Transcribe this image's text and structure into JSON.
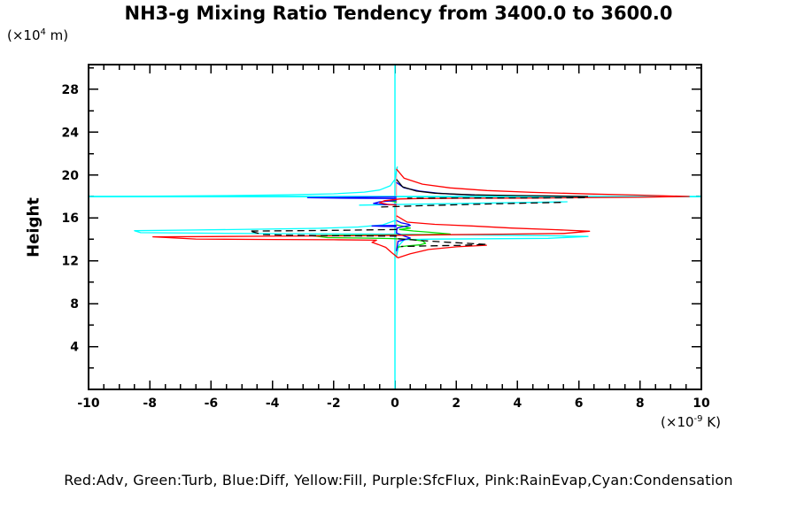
{
  "title": "NH3-g Mixing Ratio Tendency from 3400.0 to 3600.0",
  "legend": "Red:Adv, Green:Turb, Blue:Diff, Yellow:Fill, Purple:SfcFlux, Pink:RainEvap,Cyan:Condensation",
  "y_axis": {
    "label": "Height",
    "unit_prefix": "(×10",
    "unit_exp": "4",
    "unit_suffix": " m)",
    "major_ticks": [
      4,
      8,
      12,
      16,
      20,
      24,
      28
    ],
    "major_step": 4,
    "minor_step": 2,
    "range": [
      0,
      30.3
    ]
  },
  "x_axis": {
    "unit_prefix": "(×10",
    "unit_exp": "-9",
    "unit_suffix": " K)",
    "major_ticks": [
      -10,
      -8,
      -6,
      -4,
      -2,
      0,
      2,
      4,
      6,
      8,
      10
    ],
    "major_step": 2,
    "minor_step": 0.5,
    "range": [
      -10,
      10
    ]
  },
  "colors": {
    "red": "#ff0000",
    "green": "#00dd00",
    "blue": "#0000ff",
    "yellow": "#ffff00",
    "purple": "#aa22ff",
    "pink": "#ffaaaa",
    "cyan": "#00ffff",
    "black": "#000000",
    "axis": "#000000",
    "background": "#ffffff"
  },
  "chart_data": {
    "type": "line",
    "title": "NH3-g Mixing Ratio Tendency from 3400.0 to 3600.0",
    "xlabel": "(×10^-9 K)",
    "ylabel": "Height (×10^4 m)",
    "xlim": [
      -10,
      10
    ],
    "ylim": [
      0,
      30.3
    ],
    "grid": false,
    "legend_position": "bottom",
    "zero_reference_line": {
      "x": 0,
      "color": "#00ffff",
      "full_height": true
    },
    "series": [
      {
        "name": "condensation-zero-line",
        "legend": "Cyan:Condensation",
        "color": "#00ffff",
        "style": "solid",
        "width": 1.4,
        "points": [
          [
            0,
            0
          ],
          [
            0,
            30.3
          ]
        ]
      },
      {
        "name": "rainevap-zero-segment",
        "legend": "Pink:RainEvap",
        "color": "#ffaaaa",
        "style": "solid",
        "width": 1.4,
        "points": [
          [
            0.045,
            12.25
          ],
          [
            0.045,
            20.7
          ]
        ]
      },
      {
        "name": "condensation-upper-funnel",
        "legend": "Cyan:Condensation",
        "color": "#00ffff",
        "style": "solid",
        "width": 1.3,
        "points": [
          [
            0.08,
            20.8
          ],
          [
            0.0,
            19.6
          ],
          [
            -0.15,
            19.0
          ],
          [
            -0.5,
            18.6
          ],
          [
            -1.0,
            18.4
          ],
          [
            -2.0,
            18.25
          ],
          [
            -3.5,
            18.15
          ],
          [
            -5.5,
            18.08
          ],
          [
            -7.5,
            18.04
          ],
          [
            -10,
            18.0
          ]
        ]
      },
      {
        "name": "condensation-level-line",
        "legend": "Cyan:Condensation",
        "color": "#00ffff",
        "style": "solid",
        "width": 1.7,
        "points": [
          [
            -10,
            17.99
          ],
          [
            10,
            17.99
          ]
        ]
      },
      {
        "name": "condensation-mid-segment",
        "legend": "Cyan:Condensation",
        "color": "#00ffff",
        "style": "solid",
        "width": 1.3,
        "points": [
          [
            -1.17,
            17.19
          ],
          [
            0.5,
            17.27
          ],
          [
            2.5,
            17.36
          ],
          [
            4.2,
            17.44
          ],
          [
            5.63,
            17.5
          ]
        ]
      },
      {
        "name": "condensation-lower",
        "legend": "Cyan:Condensation",
        "color": "#00ffff",
        "style": "solid",
        "width": 1.3,
        "points": [
          [
            0.05,
            15.8
          ],
          [
            -0.4,
            15.35
          ],
          [
            -1.2,
            15.15
          ],
          [
            -2.5,
            15.03
          ],
          [
            -4.5,
            14.94
          ],
          [
            -6.5,
            14.87
          ],
          [
            -8.5,
            14.8
          ],
          [
            -8.3,
            14.62
          ],
          [
            -6.0,
            14.57
          ],
          [
            -3.5,
            14.53
          ],
          [
            -1.0,
            14.5
          ],
          [
            0.05,
            14.48
          ],
          [
            1.5,
            14.44
          ],
          [
            3.5,
            14.38
          ],
          [
            5.0,
            14.33
          ],
          [
            6.3,
            14.27
          ],
          [
            5.0,
            14.09
          ],
          [
            3.0,
            14.05
          ],
          [
            1.2,
            14.02
          ],
          [
            0.3,
            13.97
          ],
          [
            0.12,
            13.4
          ],
          [
            0.05,
            12.4
          ]
        ]
      },
      {
        "name": "turb-upper",
        "legend": "Green:Turb",
        "color": "#00dd00",
        "style": "solid",
        "width": 1.3,
        "points": [
          [
            0.05,
            17.72
          ],
          [
            -0.22,
            17.6
          ],
          [
            0.05,
            17.48
          ]
        ]
      },
      {
        "name": "turb-lower",
        "legend": "Green:Turb",
        "color": "#00dd00",
        "style": "solid",
        "width": 1.3,
        "points": [
          [
            0.05,
            15.35
          ],
          [
            0.3,
            15.2
          ],
          [
            0.5,
            15.05
          ],
          [
            0.15,
            14.92
          ],
          [
            0.6,
            14.78
          ],
          [
            1.3,
            14.62
          ],
          [
            1.8,
            14.5
          ],
          [
            0.9,
            14.44
          ],
          [
            -0.5,
            14.4
          ],
          [
            -1.8,
            14.37
          ],
          [
            -2.7,
            14.34
          ],
          [
            -2.2,
            14.16
          ],
          [
            -1.0,
            14.12
          ],
          [
            -0.2,
            14.08
          ],
          [
            0.5,
            14.0
          ],
          [
            0.9,
            13.85
          ],
          [
            1.0,
            13.62
          ],
          [
            0.8,
            13.48
          ],
          [
            0.4,
            13.38
          ],
          [
            0.1,
            13.28
          ],
          [
            0.05,
            13.05
          ]
        ]
      },
      {
        "name": "diff-upper",
        "legend": "Blue:Diff",
        "color": "#0000ff",
        "style": "solid",
        "width": 1.3,
        "points": [
          [
            0.05,
            19.3
          ],
          [
            0.3,
            18.8
          ],
          [
            0.8,
            18.5
          ],
          [
            1.4,
            18.3
          ],
          [
            2.0,
            18.2
          ],
          [
            2.6,
            18.15
          ]
        ]
      },
      {
        "name": "diff-upper-left-spike",
        "legend": "Blue:Diff",
        "color": "#0000ff",
        "style": "solid",
        "width": 1.3,
        "points": [
          [
            0.05,
            17.95
          ],
          [
            -1.2,
            17.92
          ],
          [
            -2.85,
            17.88
          ],
          [
            -1.5,
            17.83
          ],
          [
            0.05,
            17.8
          ]
        ]
      },
      {
        "name": "diff-upper-loop",
        "legend": "Blue:Diff",
        "color": "#0000ff",
        "style": "solid",
        "width": 1.3,
        "points": [
          [
            0.05,
            17.62
          ],
          [
            -0.5,
            17.5
          ],
          [
            -0.7,
            17.35
          ],
          [
            -0.3,
            17.22
          ],
          [
            0.05,
            17.25
          ]
        ]
      },
      {
        "name": "diff-lower",
        "legend": "Blue:Diff",
        "color": "#0000ff",
        "style": "solid",
        "width": 1.3,
        "points": [
          [
            0.05,
            15.75
          ],
          [
            0.2,
            15.55
          ],
          [
            0.45,
            15.4
          ],
          [
            0.5,
            15.3
          ],
          [
            0.2,
            15.15
          ],
          [
            0.07,
            15.05
          ],
          [
            0.05,
            14.6
          ],
          [
            0.3,
            14.3
          ],
          [
            0.5,
            14.12
          ],
          [
            0.3,
            13.95
          ],
          [
            0.1,
            13.82
          ],
          [
            0.05,
            12.9
          ]
        ]
      },
      {
        "name": "diff-lower-left-spike",
        "legend": "Blue:Diff",
        "color": "#0000ff",
        "style": "solid",
        "width": 1.3,
        "points": [
          [
            0.05,
            15.3
          ],
          [
            -0.4,
            15.28
          ],
          [
            -0.75,
            15.25
          ],
          [
            -0.35,
            15.2
          ],
          [
            0.05,
            15.18
          ]
        ]
      },
      {
        "name": "adv-upper",
        "legend": "Red:Adv",
        "color": "#ff0000",
        "style": "solid",
        "width": 1.3,
        "points": [
          [
            0.05,
            20.55
          ],
          [
            0.3,
            19.7
          ],
          [
            0.9,
            19.15
          ],
          [
            1.8,
            18.8
          ],
          [
            3.0,
            18.55
          ],
          [
            4.5,
            18.38
          ],
          [
            6.5,
            18.22
          ],
          [
            8.0,
            18.12
          ],
          [
            9.6,
            18.0
          ],
          [
            8.0,
            17.92
          ],
          [
            6.0,
            17.88
          ],
          [
            4.0,
            17.85
          ],
          [
            2.0,
            17.83
          ],
          [
            0.8,
            17.8
          ],
          [
            0.15,
            17.77
          ],
          [
            -0.35,
            17.6
          ],
          [
            -0.5,
            17.42
          ],
          [
            -0.25,
            17.26
          ],
          [
            0.05,
            17.18
          ]
        ]
      },
      {
        "name": "adv-lower",
        "legend": "Red:Adv",
        "color": "#ff0000",
        "style": "solid",
        "width": 1.3,
        "points": [
          [
            0.05,
            16.2
          ],
          [
            0.4,
            15.6
          ],
          [
            1.3,
            15.4
          ],
          [
            2.5,
            15.25
          ],
          [
            3.8,
            15.05
          ],
          [
            5.2,
            14.9
          ],
          [
            6.35,
            14.75
          ],
          [
            5.5,
            14.55
          ],
          [
            3.5,
            14.48
          ],
          [
            1.5,
            14.42
          ],
          [
            0.2,
            14.38
          ],
          [
            -1.5,
            14.33
          ],
          [
            -4.0,
            14.29
          ],
          [
            -6.0,
            14.26
          ],
          [
            -7.9,
            14.23
          ],
          [
            -6.5,
            14.03
          ],
          [
            -4.0,
            13.99
          ],
          [
            -2.0,
            13.96
          ],
          [
            -0.6,
            13.92
          ],
          [
            -0.75,
            13.72
          ],
          [
            -0.55,
            13.52
          ],
          [
            -0.3,
            13.25
          ],
          [
            -0.1,
            12.75
          ],
          [
            0.1,
            12.28
          ],
          [
            0.5,
            12.65
          ],
          [
            1.1,
            13.05
          ],
          [
            2.0,
            13.3
          ],
          [
            3.0,
            13.45
          ]
        ]
      },
      {
        "name": "net-total-upper",
        "legend": null,
        "color": "#000000",
        "style": "solid",
        "width": 1.3,
        "points": [
          [
            0.05,
            19.6
          ],
          [
            0.25,
            18.9
          ],
          [
            0.7,
            18.5
          ],
          [
            1.3,
            18.3
          ],
          [
            2.5,
            18.15
          ],
          [
            4.0,
            18.08
          ],
          [
            5.0,
            18.05
          ],
          [
            6.3,
            18.0
          ]
        ]
      },
      {
        "name": "net-total-upper-return",
        "legend": null,
        "color": "#000000",
        "style": "dashed",
        "width": 1.3,
        "points": [
          [
            6.2,
            17.88
          ],
          [
            4.5,
            17.87
          ],
          [
            3.0,
            17.86
          ],
          [
            1.5,
            17.85
          ],
          [
            0.4,
            17.84
          ]
        ]
      },
      {
        "name": "net-total-mid",
        "legend": null,
        "color": "#000000",
        "style": "dashed",
        "width": 1.3,
        "points": [
          [
            -0.45,
            17.02
          ],
          [
            1.0,
            17.15
          ],
          [
            3.0,
            17.3
          ],
          [
            5.5,
            17.45
          ]
        ]
      },
      {
        "name": "net-total-lower-left",
        "legend": null,
        "color": "#000000",
        "style": "dashed",
        "width": 1.3,
        "points": [
          [
            0.05,
            14.92
          ],
          [
            -1.5,
            14.85
          ],
          [
            -3.2,
            14.8
          ],
          [
            -4.75,
            14.77
          ],
          [
            -4.3,
            14.45
          ],
          [
            -3.5,
            14.38
          ],
          [
            -2.5,
            14.35
          ],
          [
            -1.0,
            14.32
          ],
          [
            0.05,
            14.3
          ]
        ]
      },
      {
        "name": "net-total-lower-right",
        "legend": null,
        "color": "#000000",
        "style": "dashed",
        "width": 1.3,
        "points": [
          [
            0.1,
            14.05
          ],
          [
            0.8,
            13.9
          ],
          [
            1.6,
            13.75
          ],
          [
            2.4,
            13.62
          ],
          [
            3.0,
            13.52
          ],
          [
            2.2,
            13.44
          ],
          [
            1.0,
            13.38
          ],
          [
            0.2,
            13.33
          ]
        ]
      },
      {
        "name": "fill",
        "legend": "Yellow:Fill",
        "color": "#ffff00",
        "style": "solid",
        "width": 1.3,
        "visible": false,
        "points": []
      },
      {
        "name": "sfcflux",
        "legend": "Purple:SfcFlux",
        "color": "#aa22ff",
        "style": "solid",
        "width": 1.3,
        "visible": false,
        "points": []
      }
    ]
  }
}
